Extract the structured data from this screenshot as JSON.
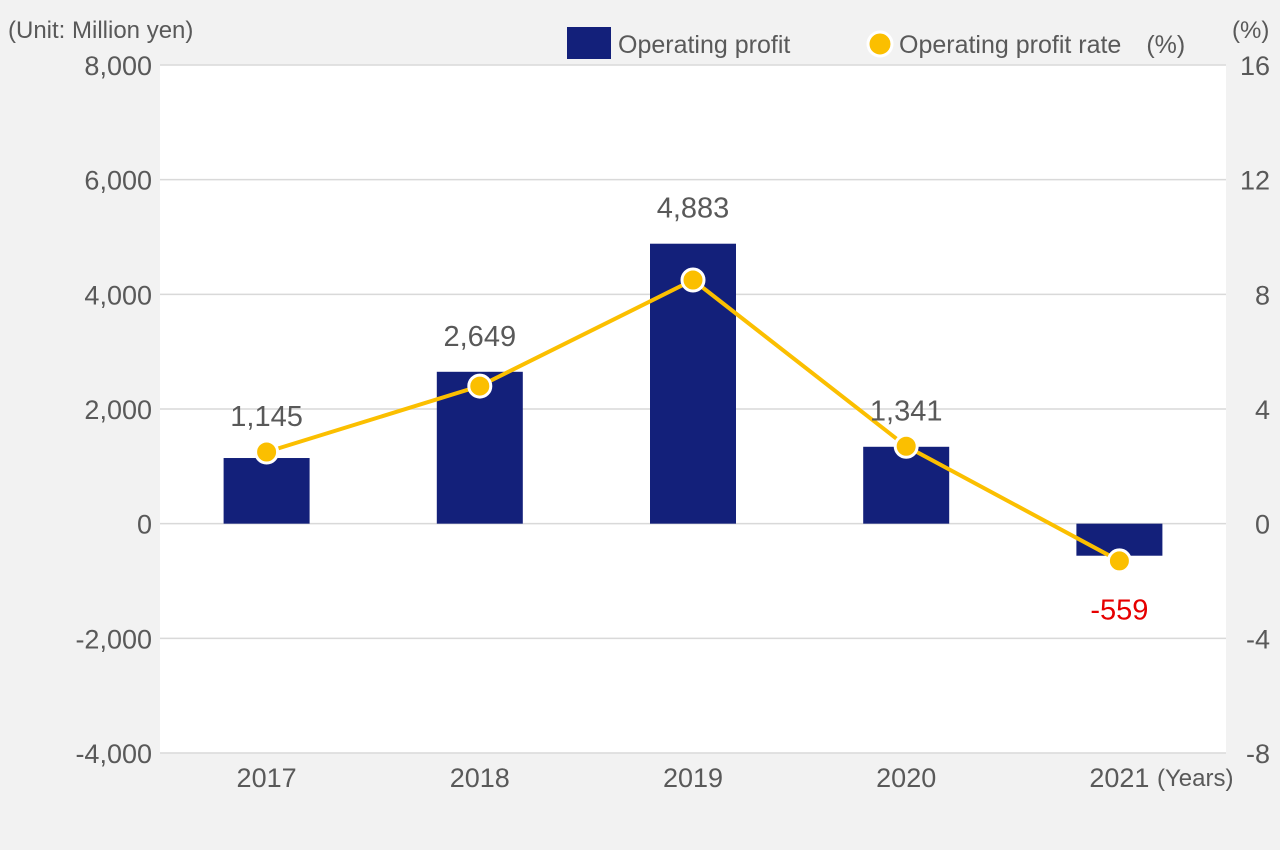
{
  "chart_data": {
    "type": "bar",
    "title": "",
    "unit_label": "(Unit: Million yen)",
    "right_unit_label": "(%)",
    "x_suffix_label": "(Years)",
    "categories": [
      "2017",
      "2018",
      "2019",
      "2020",
      "2021"
    ],
    "series": [
      {
        "name": "Operating profit",
        "type": "bar",
        "axis": "left",
        "values": [
          1145,
          2649,
          4883,
          1341,
          -559
        ],
        "labels": [
          "1,145",
          "2,649",
          "4,883",
          "1,341",
          "-559"
        ],
        "color": "#13207a"
      },
      {
        "name": "Operating profit rate",
        "type": "line",
        "axis": "right",
        "values": [
          2.5,
          4.8,
          8.5,
          2.7,
          -1.3
        ],
        "color": "#fbbf00"
      }
    ],
    "legend": {
      "bar_label": "Operating profit",
      "line_label": "Operating profit rate　(%)",
      "position": "top-right"
    },
    "y_left": {
      "min": -4000,
      "max": 8000,
      "ticks": [
        8000,
        6000,
        4000,
        2000,
        0,
        -2000,
        -4000
      ],
      "tick_labels": [
        "8,000",
        "6,000",
        "4,000",
        "2,000",
        "0",
        "-2,000",
        "-4,000"
      ]
    },
    "y_right": {
      "min": -8,
      "max": 16,
      "ticks": [
        16,
        12,
        8,
        4,
        0,
        -4,
        -8
      ],
      "tick_labels": [
        "16",
        "12",
        "8",
        "4",
        "0",
        "-4",
        "-8"
      ]
    },
    "negative_label_color": "#e60000",
    "label_color": "#595959",
    "grid": true
  }
}
